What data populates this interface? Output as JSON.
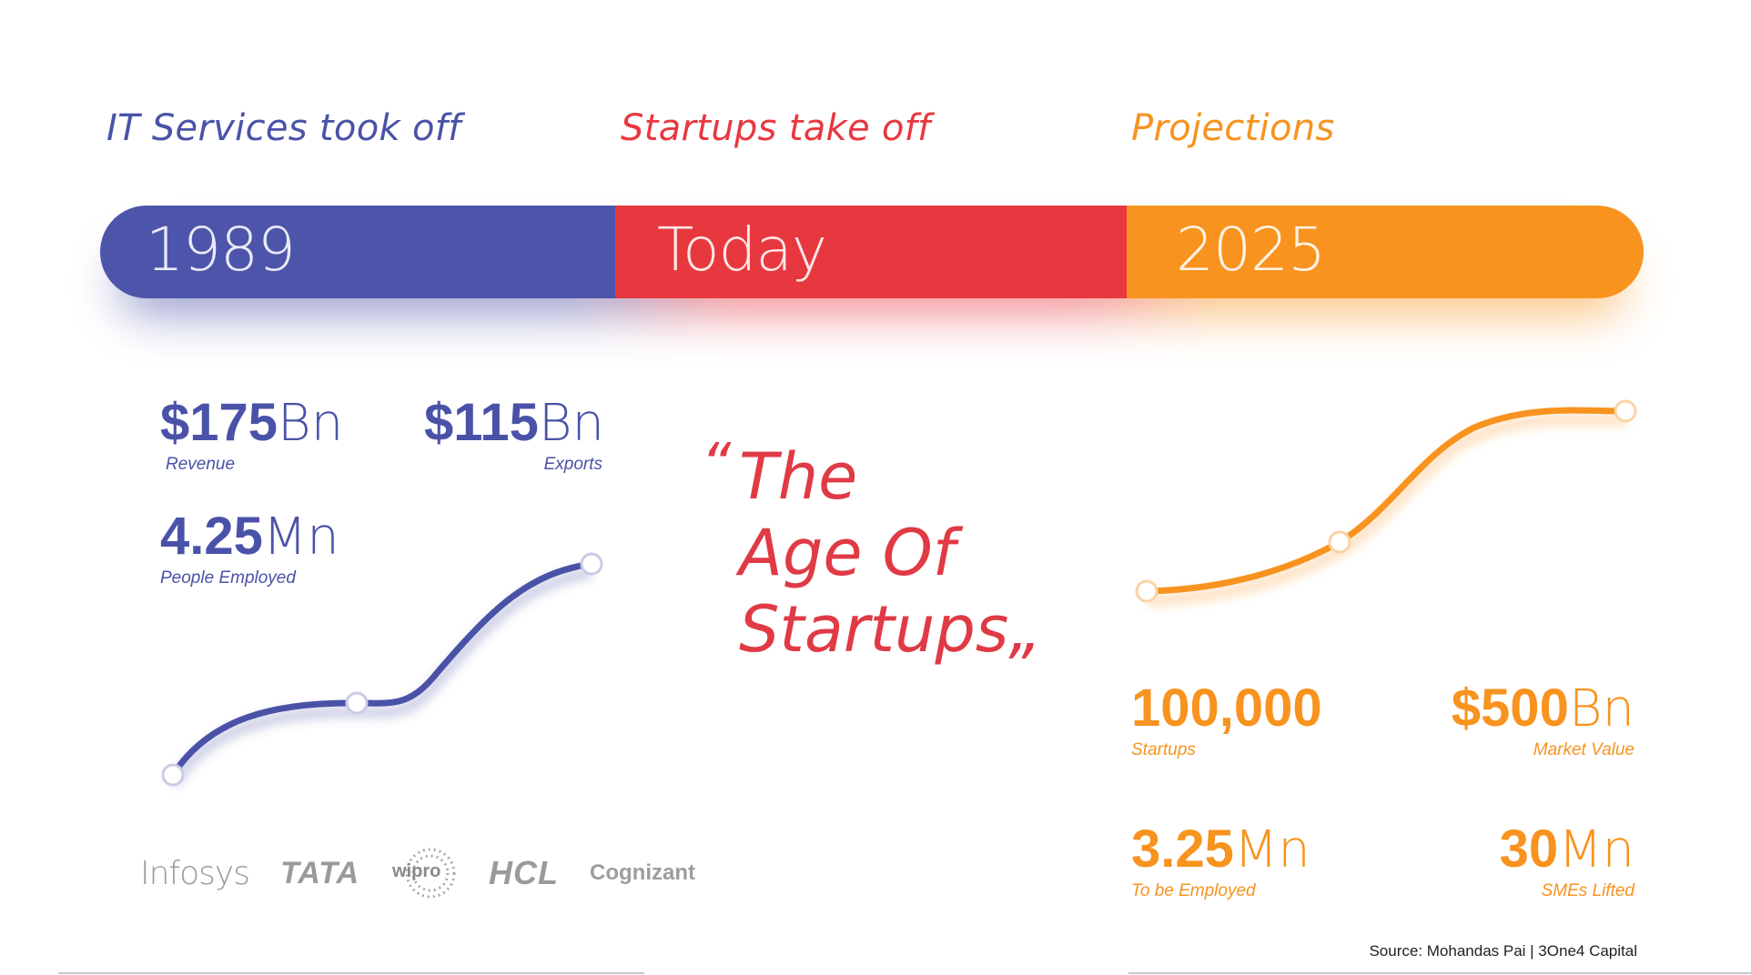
{
  "phases": [
    {
      "title": "IT Services took off",
      "year": "1989",
      "color": "#4a52a8"
    },
    {
      "title": "Startups take off",
      "year": "Today",
      "color": "#e8383f"
    },
    {
      "title": "Projections",
      "year": "2025",
      "color": "#f7931e"
    }
  ],
  "left_stats": {
    "revenue": {
      "num": "$175",
      "unit": "Bn",
      "label": "Revenue"
    },
    "exports": {
      "num": "$115",
      "unit": "Bn",
      "label": "Exports"
    },
    "employed": {
      "num": "4.25",
      "unit": "Mn",
      "label": "People Employed"
    }
  },
  "quote": {
    "open": "“",
    "lines": [
      "The",
      "Age Of",
      "Startups"
    ],
    "close": "„"
  },
  "right_stats": {
    "startups": {
      "num": "100,000",
      "unit": "",
      "label": "Startups"
    },
    "market": {
      "num": "$500",
      "unit": "Bn",
      "label": "Market Value"
    },
    "employed": {
      "num": "3.25",
      "unit": "Mn",
      "label": "To be Employed"
    },
    "smes": {
      "num": "30",
      "unit": "Mn",
      "label": "SMEs Lifted"
    }
  },
  "logos": [
    "Infosys",
    "TATA",
    "wipro",
    "HCL",
    "Cognizant"
  ],
  "source": "Source: Mohandas Pai | 3One4 Capital"
}
